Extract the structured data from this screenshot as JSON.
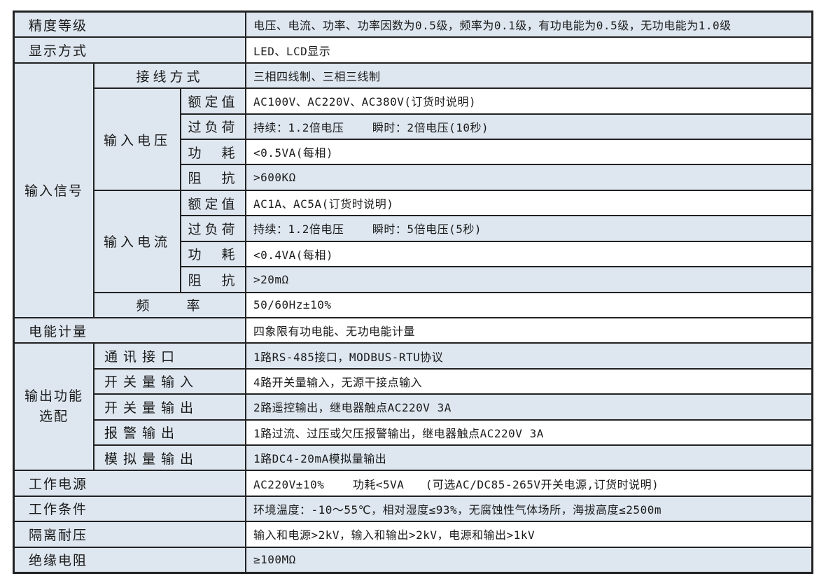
{
  "colors": {
    "row_shade": "#dee7f0",
    "row_white": "#ffffff",
    "grid_line": "#222222",
    "text": "#1a1a1a"
  },
  "specs": {
    "accuracy": {
      "label": "精度等级",
      "value": "电压、电流、功率、功率因数为0.5级，频率为0.1级，有功电能为0.5级，无功电能为1.0级"
    },
    "display": {
      "label": "显示方式",
      "value": "LED、LCD显示"
    },
    "input_signal": {
      "label": "输入信号",
      "wiring": {
        "label": "接线方式",
        "value": "三相四线制、三相三线制"
      },
      "voltage": {
        "label": "输入电压",
        "rated": {
          "label": "额定值",
          "value": "AC100V、AC220V、AC380V(订货时说明)"
        },
        "overload": {
          "label": "过负荷",
          "value": "持续：1.2倍电压    瞬时：2倍电压(10秒)"
        },
        "power_loss": {
          "label": "功　耗",
          "value": "<0.5VA(每相)"
        },
        "impedance": {
          "label": "阻　抗",
          "value": ">600KΩ"
        }
      },
      "current": {
        "label": "输入电流",
        "rated": {
          "label": "额定值",
          "value": "AC1A、AC5A(订货时说明)"
        },
        "overload": {
          "label": "过负荷",
          "value": "持续：1.2倍电压    瞬时：5倍电压(5秒)"
        },
        "power_loss": {
          "label": "功　耗",
          "value": "<0.4VA(每相)"
        },
        "impedance": {
          "label": "阻　抗",
          "value": ">20mΩ"
        }
      },
      "frequency": {
        "label": "频　　率",
        "value": "50/60Hz±10%"
      }
    },
    "energy_metering": {
      "label": "电能计量",
      "value": "四象限有功电能、无功电能计量"
    },
    "output_options": {
      "label_line1": "输出功能",
      "label_line2": "选配",
      "comm": {
        "label": "通讯接口",
        "value": "1路RS-485接口，MODBUS-RTU协议"
      },
      "digital_input": {
        "label": "开关量输入",
        "value": "4路开关量输入，无源干接点输入"
      },
      "digital_output": {
        "label": "开关量输出",
        "value": "2路遥控输出，继电器触点AC220V 3A"
      },
      "alarm_output": {
        "label": "报警输出",
        "value": "1路过流、过压或欠压报警输出，继电器触点AC220V 3A"
      },
      "analog_output": {
        "label": "模拟量输出",
        "value": "1路DC4-20mA模拟量输出"
      }
    },
    "power_supply": {
      "label": "工作电源",
      "value": "AC220V±10%    功耗<5VA   (可选AC/DC85-265V开关电源,订货时说明)"
    },
    "work_conditions": {
      "label": "工作条件",
      "value": "环境温度：-10～55℃，相对湿度≤93%，无腐蚀性气体场所，海拔高度≤2500m"
    },
    "isolation_voltage": {
      "label": "隔离耐压",
      "value": "输入和电源>2kV，输入和输出>2kV，电源和输出>1kV"
    },
    "insulation_resistance": {
      "label": "绝缘电阻",
      "value": "≥100MΩ"
    }
  }
}
